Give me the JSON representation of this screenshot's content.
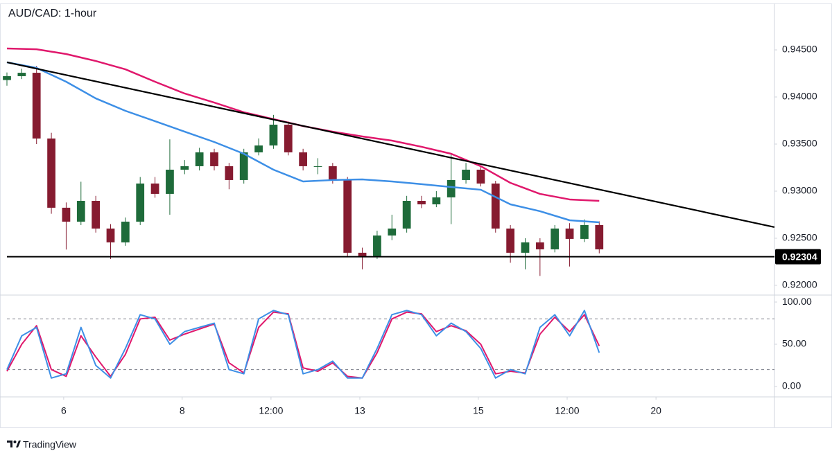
{
  "chart_data": [
    {
      "type": "candlestick",
      "title": "AUD/CAD: 1-hour",
      "x": [
        0,
        6,
        12,
        18,
        24,
        30,
        36,
        42,
        48,
        54,
        60,
        66,
        72,
        78,
        84,
        90,
        96,
        102,
        108,
        114,
        120,
        126,
        132,
        138,
        144,
        150,
        156,
        162,
        168,
        174,
        180,
        186,
        192,
        198,
        204,
        210,
        216,
        222,
        228,
        234,
        240
      ],
      "open": [
        0.9418,
        0.94221,
        0.94257,
        0.93559,
        0.92824,
        0.92676,
        0.92897,
        0.92603,
        0.92456,
        0.92676,
        0.93081,
        0.92971,
        0.93228,
        0.93265,
        0.93412,
        0.93265,
        0.93118,
        0.93412,
        0.93485,
        0.93706,
        0.93412,
        0.93265,
        0.93265,
        0.93118,
        0.92346,
        0.92309,
        0.92529,
        0.92603,
        0.92897,
        0.9286,
        0.92934,
        0.93118,
        0.93228,
        0.93081,
        0.92603,
        0.92346,
        0.92456,
        0.92382,
        0.92603,
        0.92493,
        0.9264
      ],
      "high": [
        0.9426,
        0.943,
        0.9433,
        0.9362,
        0.9288,
        0.931,
        0.9295,
        0.9265,
        0.9272,
        0.9315,
        0.9315,
        0.9355,
        0.9333,
        0.9346,
        0.9345,
        0.933,
        0.9345,
        0.9356,
        0.9381,
        0.9374,
        0.9345,
        0.9335,
        0.933,
        0.9315,
        0.924,
        0.9258,
        0.9275,
        0.9295,
        0.9295,
        0.93,
        0.9339,
        0.933,
        0.9326,
        0.9311,
        0.9264,
        0.925,
        0.925,
        0.9264,
        0.9266,
        0.927,
        0.9268
      ],
      "low": [
        0.9412,
        0.9419,
        0.935,
        0.9276,
        0.9238,
        0.9264,
        0.9256,
        0.9228,
        0.9242,
        0.9264,
        0.9293,
        0.9275,
        0.9318,
        0.9322,
        0.9322,
        0.9302,
        0.9308,
        0.9338,
        0.9345,
        0.9338,
        0.9322,
        0.9318,
        0.9308,
        0.923,
        0.9217,
        0.9228,
        0.9248,
        0.9256,
        0.9282,
        0.9283,
        0.9265,
        0.9308,
        0.9305,
        0.9256,
        0.9224,
        0.9217,
        0.921,
        0.9235,
        0.922,
        0.9246,
        0.9234
      ],
      "close": [
        0.94221,
        0.94257,
        0.93559,
        0.92824,
        0.92676,
        0.92897,
        0.92603,
        0.92456,
        0.92676,
        0.93081,
        0.92971,
        0.93228,
        0.93265,
        0.93412,
        0.93265,
        0.93118,
        0.93412,
        0.93485,
        0.93706,
        0.93412,
        0.93265,
        0.93265,
        0.93118,
        0.92346,
        0.92309,
        0.92529,
        0.92603,
        0.92897,
        0.9286,
        0.92934,
        0.93118,
        0.93228,
        0.93081,
        0.92603,
        0.92346,
        0.92456,
        0.92382,
        0.92603,
        0.92493,
        0.9264,
        0.92382
      ],
      "up_color": "#1e6b3a",
      "down_color": "#861b30",
      "lines": [
        {
          "color": "#e0186c",
          "x": [
            0,
            12,
            24,
            36,
            48,
            60,
            72,
            84,
            96,
            108,
            120,
            132,
            144,
            156,
            168,
            180,
            192,
            204,
            216,
            228,
            240
          ],
          "values": [
            0.94515,
            0.94507,
            0.94456,
            0.94382,
            0.94294,
            0.94162,
            0.94037,
            0.93941,
            0.93838,
            0.93765,
            0.93691,
            0.93632,
            0.93581,
            0.93537,
            0.93471,
            0.93397,
            0.93265,
            0.93088,
            0.92971,
            0.92912,
            0.92897
          ]
        },
        {
          "color": "#3d8fe6",
          "x": [
            0,
            12,
            24,
            36,
            48,
            60,
            72,
            84,
            96,
            108,
            120,
            132,
            144,
            156,
            168,
            180,
            192,
            204,
            216,
            228,
            240
          ],
          "values": [
            0.94368,
            0.94309,
            0.94162,
            0.93985,
            0.93853,
            0.93743,
            0.93632,
            0.93522,
            0.93397,
            0.93228,
            0.93103,
            0.93118,
            0.93125,
            0.93103,
            0.93074,
            0.93044,
            0.93015,
            0.9286,
            0.92787,
            0.92691,
            0.92669
          ]
        },
        {
          "color": "#000000",
          "x": [
            0,
            311
          ],
          "values": [
            0.94368,
            0.92618
          ]
        }
      ],
      "support": {
        "value": 0.92304,
        "color": "#000000"
      },
      "xlim": [
        0,
        311
      ],
      "xticks": [
        {
          "value": 23,
          "label": "6"
        },
        {
          "value": 71,
          "label": "8"
        },
        {
          "value": 107,
          "label": "12:00"
        },
        {
          "value": 143,
          "label": "13"
        },
        {
          "value": 191,
          "label": "15"
        },
        {
          "value": 227,
          "label": "12:00"
        },
        {
          "value": 263,
          "label": "20"
        }
      ],
      "ylim": [
        0.91904,
        0.94993
      ],
      "yticks": [
        {
          "value": 0.92,
          "label": "0.92000"
        },
        {
          "value": 0.925,
          "label": "0.92500"
        },
        {
          "value": 0.93,
          "label": "0.93000"
        },
        {
          "value": 0.935,
          "label": "0.93500"
        },
        {
          "value": 0.94,
          "label": "0.94000"
        },
        {
          "value": 0.945,
          "label": "0.94500"
        }
      ]
    },
    {
      "type": "line",
      "x": [
        0,
        6,
        12,
        18,
        24,
        30,
        36,
        42,
        48,
        54,
        60,
        66,
        72,
        78,
        84,
        90,
        96,
        102,
        108,
        114,
        120,
        126,
        132,
        138,
        144,
        150,
        156,
        162,
        168,
        174,
        180,
        186,
        192,
        198,
        204,
        210,
        216,
        222,
        228,
        234,
        240
      ],
      "series": [
        {
          "color": "#e0186c",
          "values": [
            18,
            50,
            72,
            20,
            12,
            60,
            35,
            12,
            38,
            80,
            82,
            55,
            62,
            68,
            74,
            28,
            16,
            70,
            88,
            86,
            22,
            18,
            28,
            12,
            10,
            40,
            80,
            88,
            86,
            65,
            72,
            66,
            50,
            15,
            18,
            16,
            62,
            82,
            65,
            85,
            48
          ]
        },
        {
          "color": "#3d8fe6",
          "values": [
            20,
            60,
            70,
            10,
            15,
            70,
            25,
            10,
            45,
            85,
            80,
            50,
            65,
            70,
            75,
            20,
            15,
            80,
            90,
            85,
            15,
            20,
            30,
            10,
            10,
            45,
            85,
            90,
            85,
            60,
            75,
            65,
            45,
            10,
            20,
            15,
            70,
            85,
            60,
            90,
            40
          ]
        }
      ],
      "levels": [
        20,
        80
      ],
      "ylim": [
        -11.5,
        106.6
      ],
      "yticks": [
        {
          "value": 0,
          "label": "0.00"
        },
        {
          "value": 50,
          "label": "50.00"
        },
        {
          "value": 100,
          "label": "100.00"
        }
      ]
    }
  ],
  "branding": "TradingView"
}
